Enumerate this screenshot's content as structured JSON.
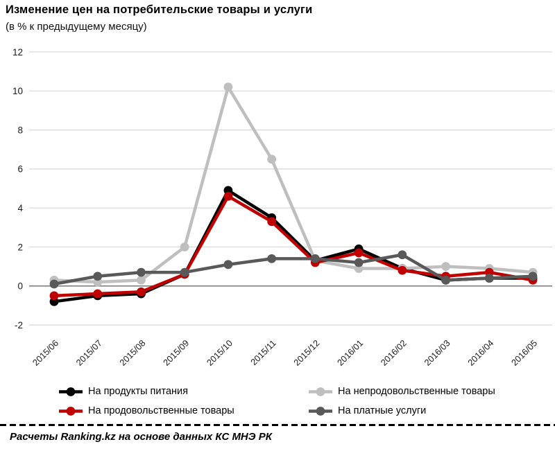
{
  "title": "Изменение цен на потребительские товары и услуги",
  "subtitle": "(в % к предыдущему месяцу)",
  "footer": {
    "source_text": "Расчеты Ranking.kz на основе данных КС МНЭ РК"
  },
  "colors": {
    "grid": "#d9d9d9",
    "zero_line": "#808080",
    "axis_text": "#1a1a1a"
  },
  "chart_data": {
    "type": "line",
    "title": "Изменение цен на потребительские товары и услуги",
    "subtitle": "(в % к предыдущему месяцу)",
    "categories": [
      "2015/06",
      "2015/07",
      "2015/08",
      "2015/09",
      "2015/10",
      "2015/11",
      "2015/12",
      "2016/01",
      "2016/02",
      "2016/03",
      "2016/04",
      "2016/05"
    ],
    "series": [
      {
        "name": "На продукты питания",
        "color": "#000000",
        "values": [
          -0.8,
          -0.5,
          -0.4,
          0.6,
          4.9,
          3.5,
          1.3,
          1.9,
          0.9,
          0.3,
          0.4,
          0.4
        ]
      },
      {
        "name": "На продовольственные товары",
        "color": "#c00000",
        "values": [
          -0.5,
          -0.4,
          -0.3,
          0.6,
          4.6,
          3.3,
          1.2,
          1.7,
          0.8,
          0.5,
          0.7,
          0.3
        ]
      },
      {
        "name": "На непродовольственные товары",
        "color": "#bfbfbf",
        "values": [
          0.3,
          0.2,
          0.3,
          2.0,
          10.2,
          6.5,
          1.3,
          0.9,
          0.9,
          1.0,
          0.9,
          0.7
        ]
      },
      {
        "name": "На платные услуги",
        "color": "#595959",
        "values": [
          0.1,
          0.5,
          0.7,
          0.7,
          1.1,
          1.4,
          1.4,
          1.2,
          1.6,
          0.3,
          0.4,
          0.5
        ]
      }
    ],
    "ylim": [
      -2,
      12
    ],
    "ytick_step": 2,
    "yticks": [
      "12",
      "10",
      "8",
      "6",
      "4",
      "2",
      "0",
      "-2"
    ],
    "grid": true,
    "legend_position": "bottom",
    "legend_order": [
      0,
      2,
      1,
      3
    ],
    "draw_order": [
      0,
      2,
      1,
      3
    ],
    "xlabel": "",
    "ylabel": ""
  }
}
